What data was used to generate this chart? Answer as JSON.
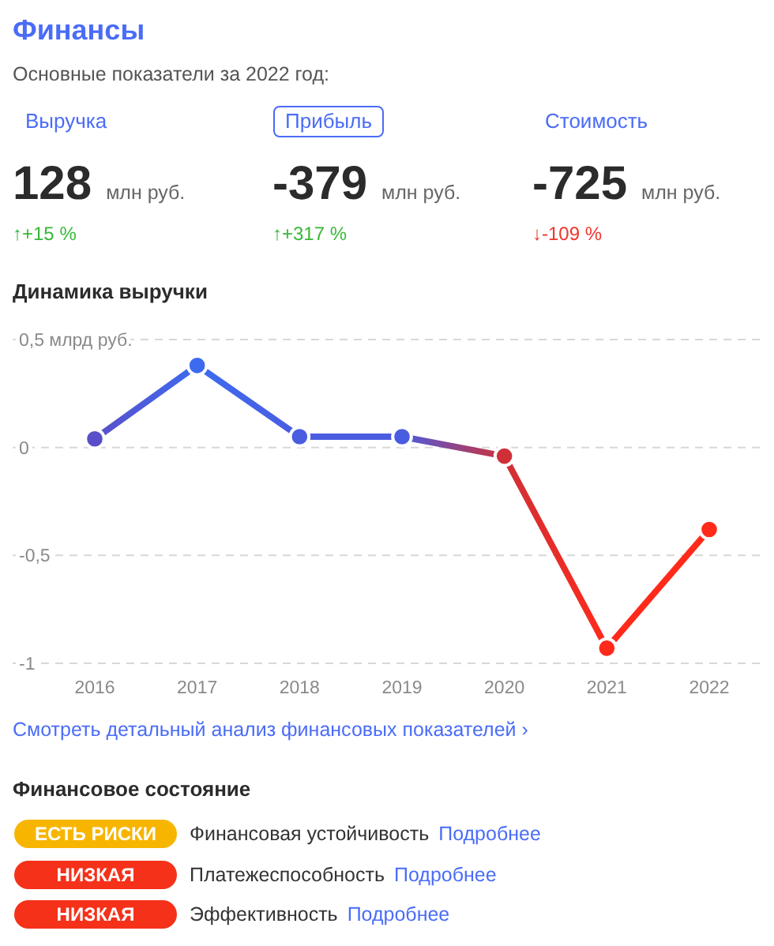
{
  "chart_data": [
    {
      "type": "other",
      "title": "Финансы",
      "subtitle": "Основные показатели за 2022 год:",
      "annotations": [
        "Выручка",
        "128",
        "млн руб.",
        "↑+15 %",
        "Прибыль",
        "-379",
        "млн руб.",
        "↑+317 %",
        "Стоимость",
        "-725",
        "млн руб.",
        "↓-109 %"
      ]
    },
    {
      "type": "line",
      "title": "Динамика выручки",
      "categories": [
        "2016",
        "2017",
        "2018",
        "2019",
        "2020",
        "2021",
        "2022"
      ],
      "series": [
        {
          "colors": [
            "#5b4fc9",
            "#3d6bf0",
            "#4a5ce0",
            "#4a5ce0",
            "#cf3038",
            "#ff2a1a",
            "#ff2a1a"
          ],
          "values": [
            0.04,
            0.38,
            0.05,
            0.05,
            -0.04,
            -0.93,
            -0.38
          ]
        }
      ],
      "ylim": [
        -1,
        0.5
      ],
      "yticks": [
        {
          "value": 0.5,
          "label": "0,5 млрд руб."
        },
        0,
        {
          "value": -0.5,
          "label": "-0,5"
        },
        -1
      ],
      "grid": "y",
      "marker": "circle",
      "line_style": "solid",
      "annotations": [
        "Смотреть детальный анализ финансовых показателей ›"
      ]
    },
    {
      "type": "other",
      "title": "Финансовое состояние",
      "annotations": [
        "ЕСТЬ РИСКИ",
        "Финансовая устойчивость",
        "Подробнее",
        "НИЗКАЯ",
        "Платежеспособность",
        "Подробнее",
        "НИЗКАЯ",
        "Эффективность",
        "Подробнее"
      ]
    }
  ]
}
